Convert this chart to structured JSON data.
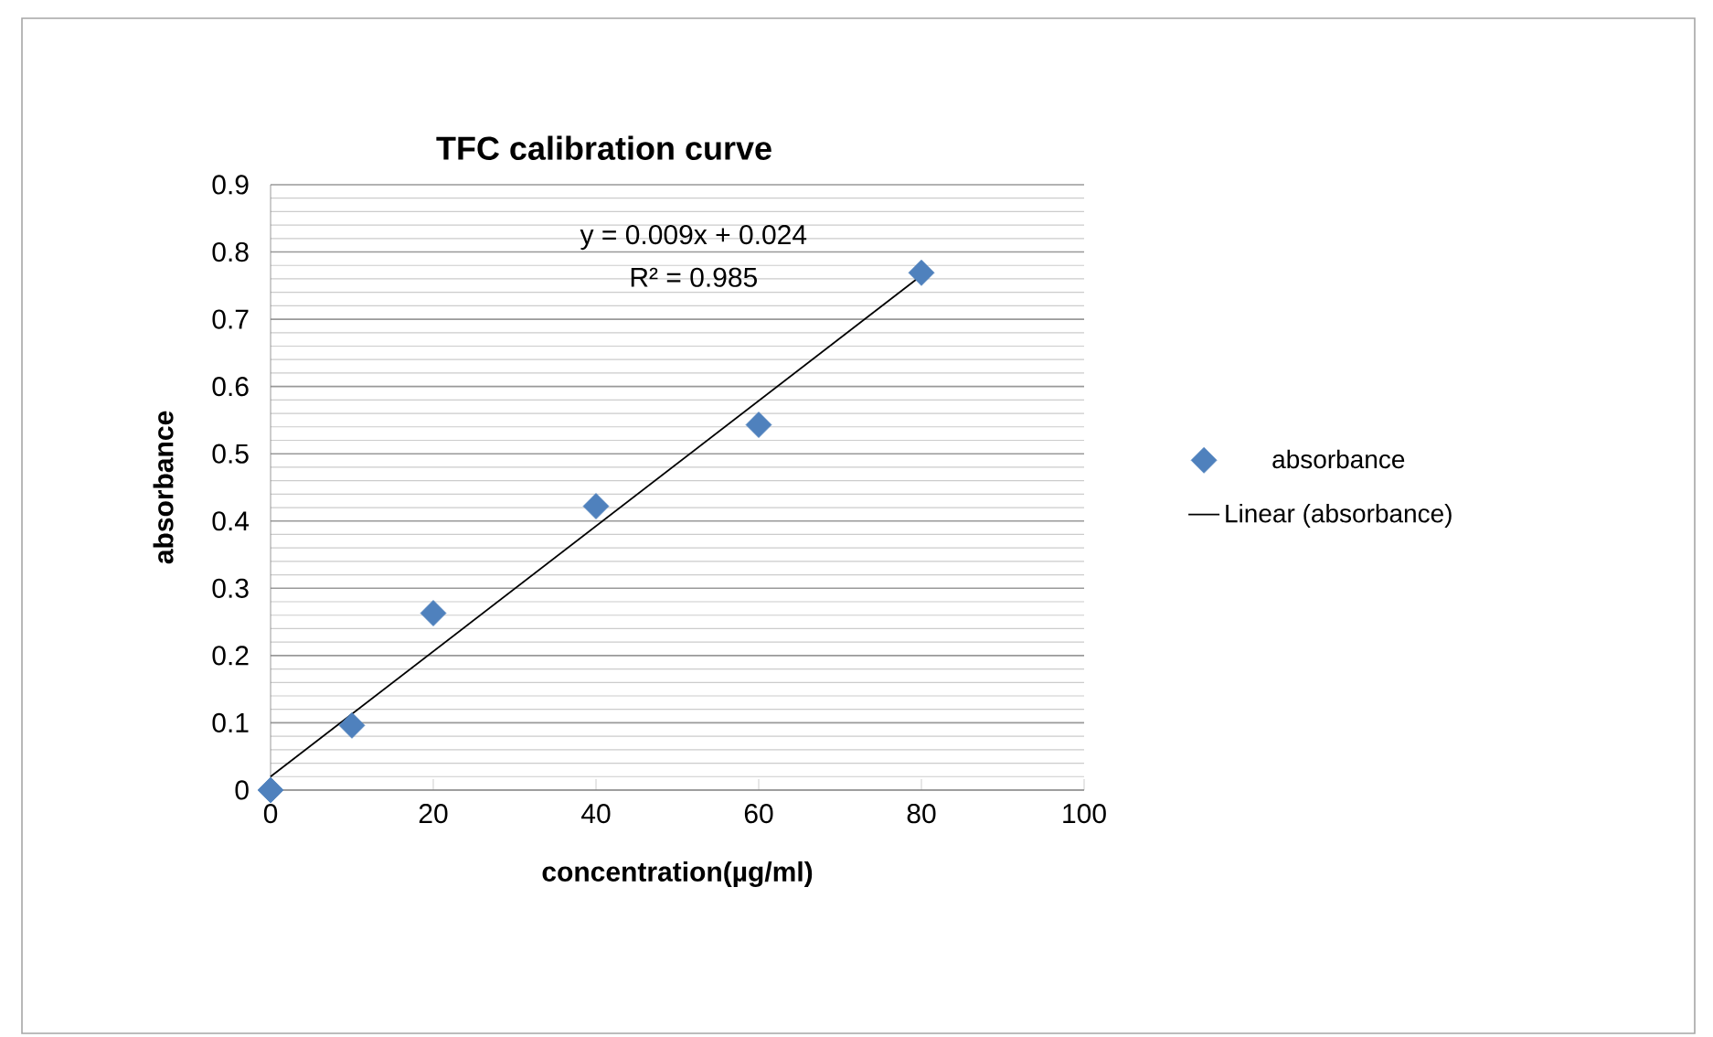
{
  "chart_data": {
    "type": "scatter",
    "title": "TFC calibration curve",
    "xlabel": "concentration(µg/ml)",
    "ylabel": "absorbance",
    "x": [
      0,
      10,
      20,
      40,
      60,
      80
    ],
    "series": [
      {
        "name": "absorbance",
        "type": "scatter",
        "color": "#4f81bd",
        "marker": "diamond",
        "values": [
          0,
          0.096,
          0.263,
          0.422,
          0.543,
          0.769
        ]
      },
      {
        "name": "Linear (absorbance)",
        "type": "line",
        "color": "#000000",
        "marker": "none",
        "line_style": "solid",
        "x": [
          0,
          80
        ],
        "values": [
          0.02,
          0.765
        ]
      }
    ],
    "annotations": [
      "y = 0.009x + 0.024",
      "R² = 0.985"
    ],
    "xlim": [
      0,
      100
    ],
    "xticks": [
      0,
      20,
      40,
      60,
      80,
      100
    ],
    "ylim": [
      0,
      0.9
    ],
    "yticks": [
      0,
      0.1,
      0.2,
      0.3,
      0.4,
      0.5,
      0.6,
      0.7,
      0.8,
      0.9
    ],
    "grid": "y",
    "legend": "right"
  }
}
